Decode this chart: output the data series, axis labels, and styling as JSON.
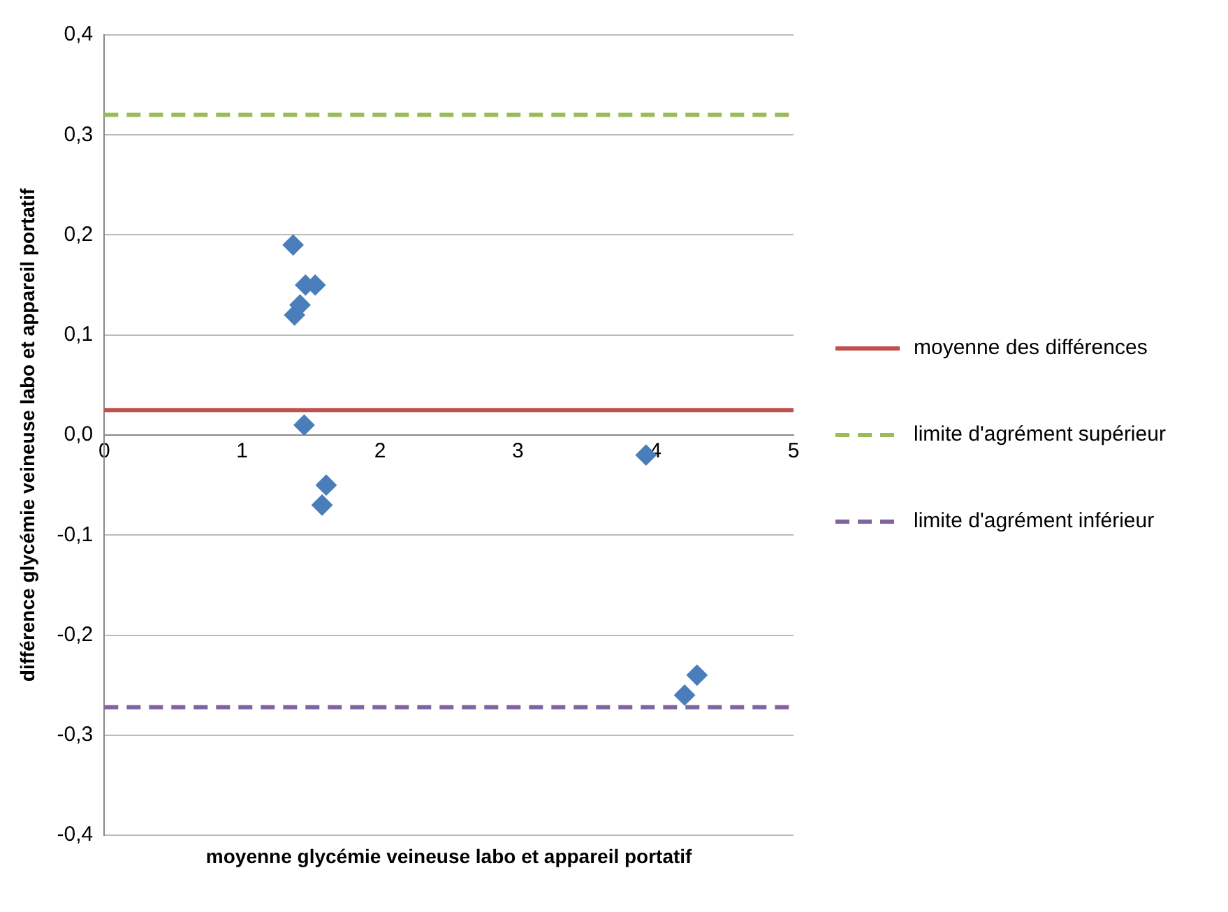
{
  "chart_data": {
    "type": "scatter",
    "xlabel": "moyenne glycémie veineuse labo et appareil portatif",
    "ylabel": "différence glycémie veineuse labo et appareil portatif",
    "series": [
      {
        "color": "#4a7ebb",
        "x": [
          1.37,
          1.46,
          1.53,
          1.42,
          1.38,
          1.45,
          1.61,
          1.58,
          3.93,
          4.3,
          4.21
        ],
        "values": [
          0.19,
          0.15,
          0.15,
          0.13,
          0.12,
          0.01,
          -0.05,
          -0.07,
          -0.02,
          -0.24,
          -0.26
        ]
      }
    ],
    "marker": "diamond",
    "xlim": [
      0,
      5
    ],
    "xticks": [
      0,
      1,
      2,
      3,
      4,
      5
    ],
    "ylim": [
      -0.4,
      0.4
    ],
    "yticks": [
      {
        "value": -0.4,
        "label": "-0,4"
      },
      {
        "value": -0.3,
        "label": "-0,3"
      },
      {
        "value": -0.2,
        "label": "-0,2"
      },
      {
        "value": -0.1,
        "label": "-0,1"
      },
      {
        "value": 0,
        "label": "0,0"
      },
      {
        "value": 0.1,
        "label": "0,1"
      },
      {
        "value": 0.2,
        "label": "0,2"
      },
      {
        "value": 0.3,
        "label": "0,3"
      },
      {
        "value": 0.4,
        "label": "0,4"
      }
    ],
    "grid": "y",
    "legend": "right",
    "ref_lines": [
      {
        "axis": "y",
        "value": 0.025,
        "label": "moyenne des différences",
        "color": "#c0504d",
        "line_style": "solid"
      },
      {
        "axis": "y",
        "value": 0.32,
        "label": "limite d'agrément supérieur",
        "color": "#9bbb59",
        "line_style": "dashed"
      },
      {
        "axis": "y",
        "value": -0.272,
        "label": "limite d'agrément inférieur",
        "color": "#8064a2",
        "line_style": "dashed"
      }
    ]
  }
}
